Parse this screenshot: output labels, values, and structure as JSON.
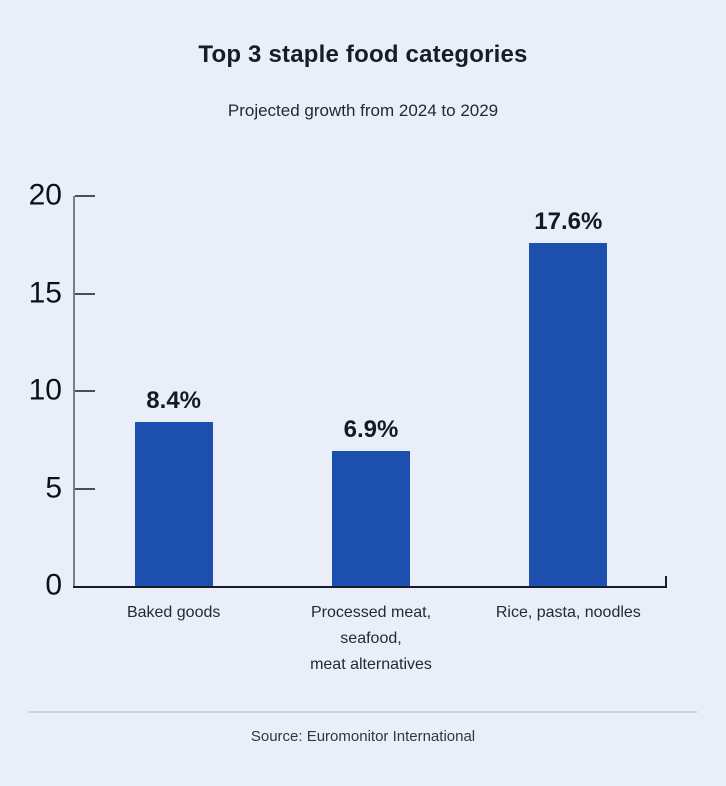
{
  "header": {
    "title": "Top 3 staple food categories",
    "subtitle": "Projected growth from 2024 to 2029"
  },
  "chart_data": {
    "type": "bar",
    "title": "Top 3 staple food categories",
    "subtitle": "Projected growth from 2024 to 2029",
    "categories": [
      "Baked goods",
      "Processed meat, seafood, meat alternatives",
      "Rice, pasta, noodles"
    ],
    "category_lines": [
      [
        "Baked goods"
      ],
      [
        "Processed meat,",
        "seafood,",
        "meat alternatives"
      ],
      [
        "Rice, pasta, noodles"
      ]
    ],
    "values": [
      8.4,
      6.9,
      17.6
    ],
    "value_labels": [
      "8.4%",
      "6.9%",
      "17.6%"
    ],
    "y_ticks": [
      0,
      5,
      10,
      15,
      20
    ],
    "ylim": [
      0,
      20
    ],
    "xlabel": "",
    "ylabel": "",
    "grid": false,
    "legend": "none",
    "bar_color": "#1d4fae",
    "axis_color": "#161d27",
    "y_axis_color": "#757e8b",
    "background_color": "#e9eef9"
  },
  "footer": {
    "source": "Source: Euromonitor International"
  }
}
